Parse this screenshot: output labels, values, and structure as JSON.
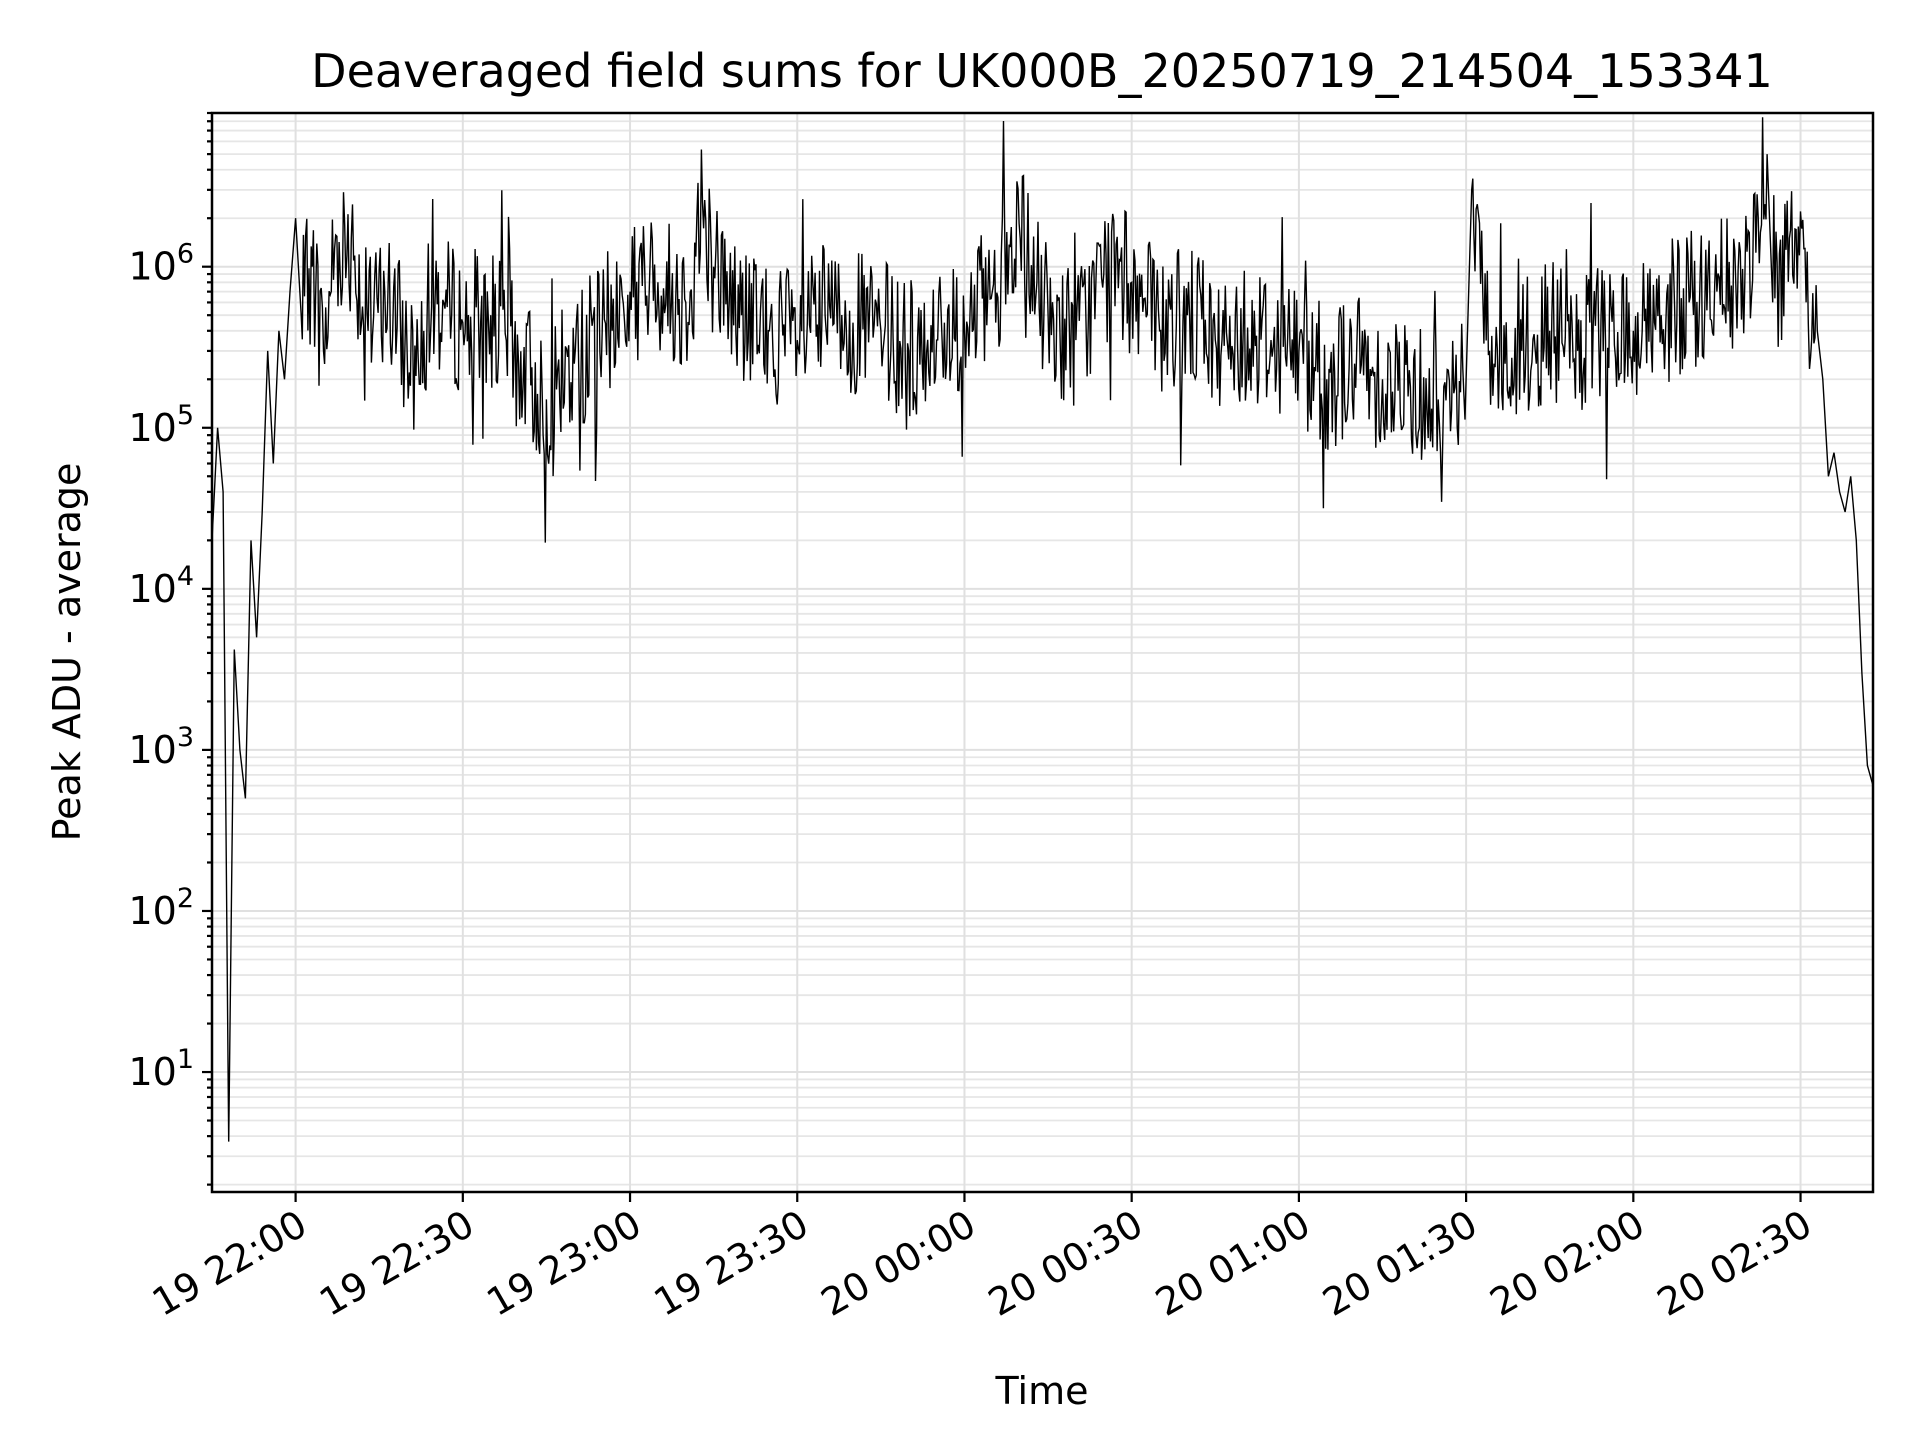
{
  "chart_data": {
    "type": "line",
    "title": "Deaveraged field sums for UK000B_20250719_214504_153341",
    "xlabel": "Time",
    "ylabel": "Peak ADU - average",
    "yscale": "log",
    "ylim": [
      1.8,
      9000000
    ],
    "xlim": [
      "19 21:45",
      "20 02:43"
    ],
    "x_ticks": [
      "19 22:00",
      "19 22:30",
      "19 23:00",
      "19 23:30",
      "20 00:00",
      "20 00:30",
      "20 01:00",
      "20 01:30",
      "20 02:00",
      "20 02:30"
    ],
    "y_ticks": [
      {
        "base": "10",
        "exp": "1",
        "value": 10
      },
      {
        "base": "10",
        "exp": "2",
        "value": 100
      },
      {
        "base": "10",
        "exp": "3",
        "value": 1000
      },
      {
        "base": "10",
        "exp": "4",
        "value": 10000
      },
      {
        "base": "10",
        "exp": "5",
        "value": 100000
      },
      {
        "base": "10",
        "exp": "6",
        "value": 1000000
      }
    ],
    "grid": true,
    "line_color": "#000000",
    "series": [
      {
        "points": [
          [
            "19 21:45",
            20000
          ],
          [
            "19 21:46",
            100000
          ],
          [
            "19 21:47",
            40000
          ],
          [
            "19 21:48",
            3.7
          ],
          [
            "19 21:49",
            4200
          ],
          [
            "19 21:50",
            1000
          ],
          [
            "19 21:51",
            500
          ],
          [
            "19 21:52",
            20000
          ],
          [
            "19 21:53",
            5000
          ],
          [
            "19 21:54",
            30000
          ],
          [
            "19 21:55",
            300000
          ],
          [
            "19 21:56",
            60000
          ],
          [
            "19 21:57",
            400000
          ],
          [
            "19 21:58",
            200000
          ],
          [
            "19 21:59",
            700000
          ],
          [
            "19 22:00",
            2000000
          ],
          [
            "19 22:01",
            500000
          ],
          [
            "19 22:03",
            1000000
          ],
          [
            "19 22:05",
            300000
          ],
          [
            "19 22:07",
            1300000
          ],
          [
            "19 22:10",
            1500000
          ],
          [
            "19 22:13",
            400000
          ],
          [
            "19 22:16",
            700000
          ],
          [
            "19 22:20",
            300000
          ],
          [
            "19 22:25",
            600000
          ],
          [
            "19 22:30",
            450000
          ],
          [
            "19 22:35",
            500000
          ],
          [
            "19 22:40",
            250000
          ],
          [
            "19 22:45",
            150000
          ],
          [
            "19 22:50",
            250000
          ],
          [
            "19 22:55",
            400000
          ],
          [
            "19 23:00",
            700000
          ],
          [
            "19 23:05",
            800000
          ],
          [
            "19 23:10",
            600000
          ],
          [
            "19 23:13",
            2500000
          ],
          [
            "19 23:15",
            1000000
          ],
          [
            "19 23:20",
            500000
          ],
          [
            "19 23:25",
            400000
          ],
          [
            "19 23:30",
            350000
          ],
          [
            "19 23:35",
            500000
          ],
          [
            "19 23:40",
            450000
          ],
          [
            "19 23:45",
            400000
          ],
          [
            "19 23:50",
            300000
          ],
          [
            "19 23:55",
            350000
          ],
          [
            "20 00:00",
            400000
          ],
          [
            "20 00:05",
            700000
          ],
          [
            "20 00:10",
            1500000
          ],
          [
            "20 00:15",
            500000
          ],
          [
            "20 00:20",
            350000
          ],
          [
            "20 00:25",
            900000
          ],
          [
            "20 00:30",
            800000
          ],
          [
            "20 00:35",
            400000
          ],
          [
            "20 00:40",
            500000
          ],
          [
            "20 00:45",
            350000
          ],
          [
            "20 00:50",
            400000
          ],
          [
            "20 00:55",
            350000
          ],
          [
            "20 01:00",
            300000
          ],
          [
            "20 01:05",
            200000
          ],
          [
            "20 01:10",
            250000
          ],
          [
            "20 01:15",
            200000
          ],
          [
            "20 01:20",
            180000
          ],
          [
            "20 01:25",
            150000
          ],
          [
            "20 01:30",
            200000
          ],
          [
            "20 01:31",
            3000000
          ],
          [
            "20 01:35",
            250000
          ],
          [
            "20 01:40",
            300000
          ],
          [
            "20 01:45",
            400000
          ],
          [
            "20 01:50",
            300000
          ],
          [
            "20 01:55",
            350000
          ],
          [
            "20 02:00",
            400000
          ],
          [
            "20 02:05",
            500000
          ],
          [
            "20 02:10",
            600000
          ],
          [
            "20 02:15",
            700000
          ],
          [
            "20 02:20",
            800000
          ],
          [
            "20 02:24",
            5000000
          ],
          [
            "20 02:25",
            600000
          ],
          [
            "20 02:28",
            1500000
          ],
          [
            "20 02:31",
            600000
          ],
          [
            "20 02:33",
            400000
          ],
          [
            "20 02:34",
            200000
          ],
          [
            "20 02:35",
            50000
          ],
          [
            "20 02:36",
            70000
          ],
          [
            "20 02:37",
            40000
          ],
          [
            "20 02:38",
            30000
          ],
          [
            "20 02:39",
            50000
          ],
          [
            "20 02:40",
            20000
          ],
          [
            "20 02:41",
            3000
          ],
          [
            "20 02:42",
            800
          ],
          [
            "20 02:43",
            600
          ]
        ]
      }
    ]
  }
}
